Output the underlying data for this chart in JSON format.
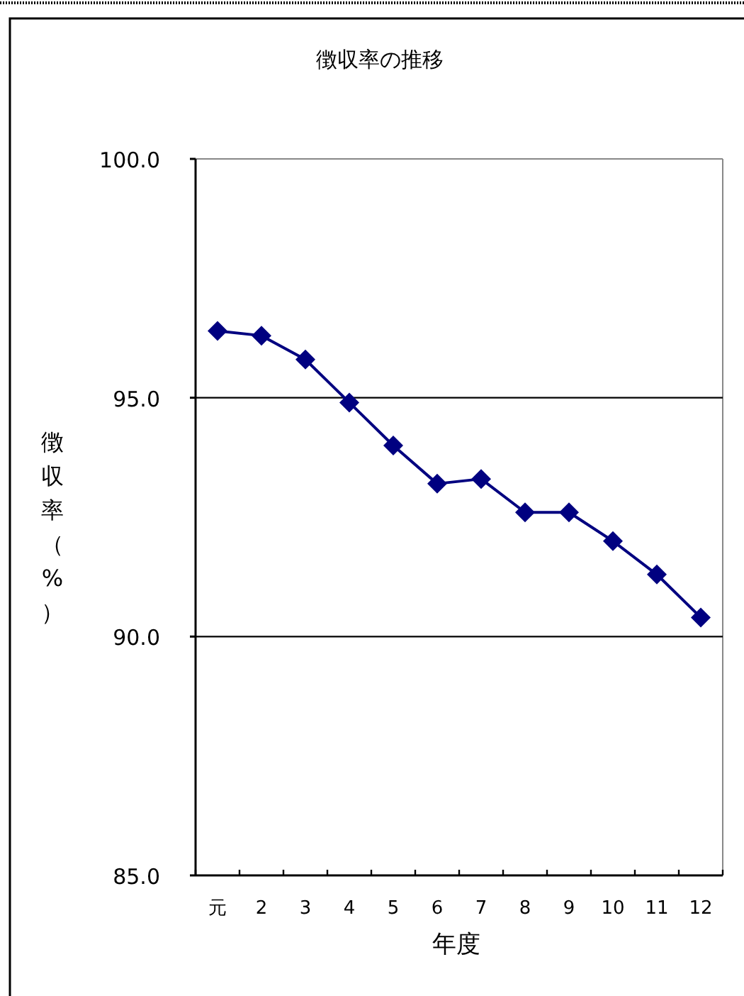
{
  "chart_data": {
    "type": "line",
    "title": "徴収率の推移",
    "xlabel": "年度",
    "ylabel": "徴収率（%）",
    "categories": [
      "元",
      "2",
      "3",
      "4",
      "5",
      "6",
      "7",
      "8",
      "9",
      "10",
      "11",
      "12"
    ],
    "series": [
      {
        "color": "#000080",
        "values": [
          96.4,
          96.3,
          95.8,
          94.9,
          94.0,
          93.2,
          93.3,
          92.6,
          92.6,
          92.0,
          91.3,
          90.4
        ]
      }
    ],
    "ylim": [
      85,
      100
    ],
    "yticks": [
      {
        "value": 85,
        "label": "85.0"
      },
      {
        "value": 90,
        "label": "90.0"
      },
      {
        "value": 95,
        "label": "95.0"
      },
      {
        "value": 100,
        "label": "100.0"
      }
    ],
    "grid": "y",
    "marker": "diamond",
    "line_style": "solid"
  }
}
